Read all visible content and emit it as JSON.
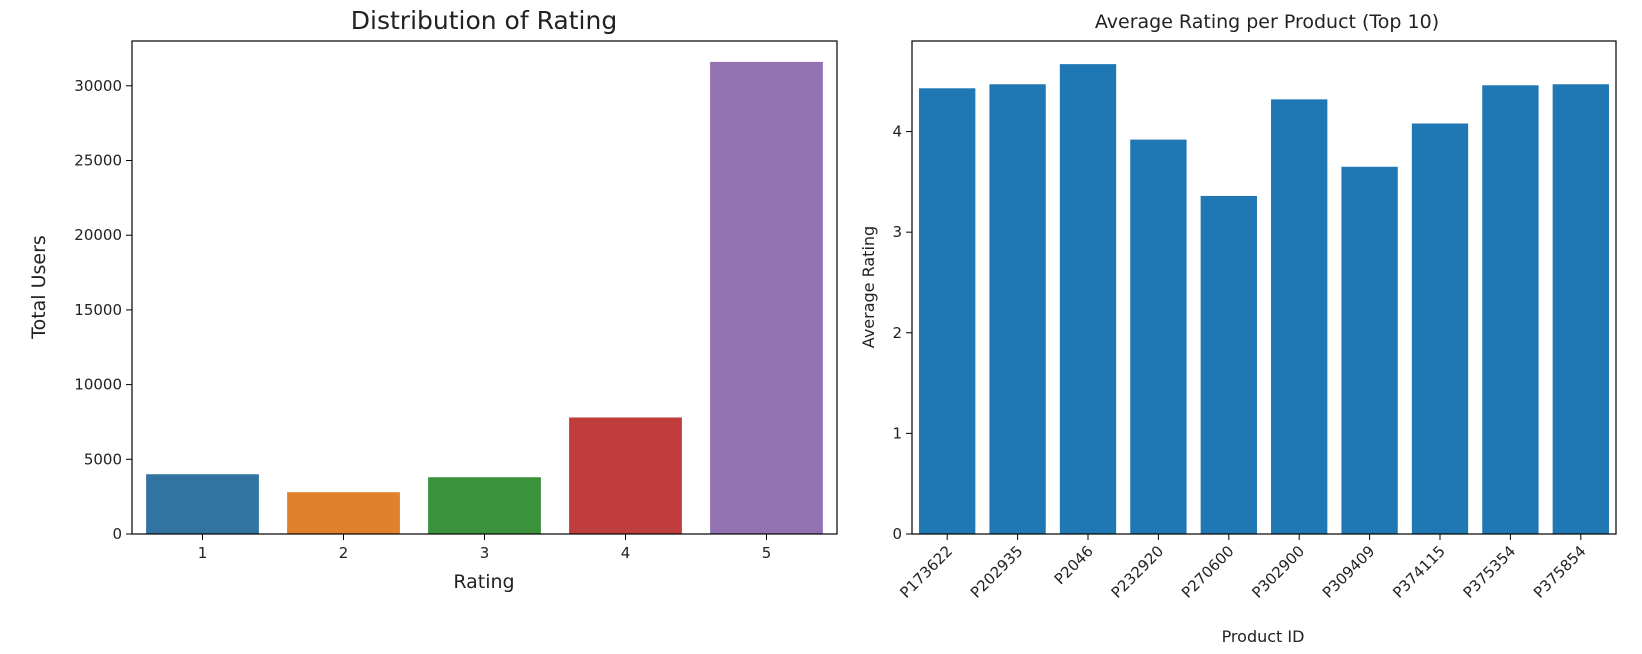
{
  "chart_data": [
    {
      "type": "bar",
      "title": "Distribution of Rating",
      "xlabel": "Rating",
      "ylabel": "Total Users",
      "categories": [
        "1",
        "2",
        "3",
        "4",
        "5"
      ],
      "values": [
        4000,
        2800,
        3800,
        7800,
        31600
      ],
      "colors": [
        "#3274a1",
        "#e1812c",
        "#3a923a",
        "#c03d3e",
        "#9372b2"
      ],
      "ylim": [
        0,
        33000
      ],
      "yticks": [
        0,
        5000,
        10000,
        15000,
        20000,
        25000,
        30000
      ],
      "ytick_labels": [
        "0",
        "5000",
        "10000",
        "15000",
        "20000",
        "25000",
        "30000"
      ],
      "grid": false
    },
    {
      "type": "bar",
      "title": "Average Rating per Product (Top 10)",
      "xlabel": "Product ID",
      "ylabel": "Average Rating",
      "categories": [
        "P173622",
        "P202935",
        "P2046",
        "P232920",
        "P270600",
        "P302900",
        "P309409",
        "P374115",
        "P375354",
        "P375854"
      ],
      "values": [
        4.43,
        4.47,
        4.67,
        3.92,
        3.36,
        4.32,
        3.65,
        4.08,
        4.46,
        4.47
      ],
      "colors": [
        "#1f77b4"
      ],
      "ylim": [
        0,
        4.9
      ],
      "yticks": [
        0,
        1,
        2,
        3,
        4
      ],
      "ytick_labels": [
        "0",
        "1",
        "2",
        "3",
        "4"
      ],
      "grid": false
    }
  ]
}
